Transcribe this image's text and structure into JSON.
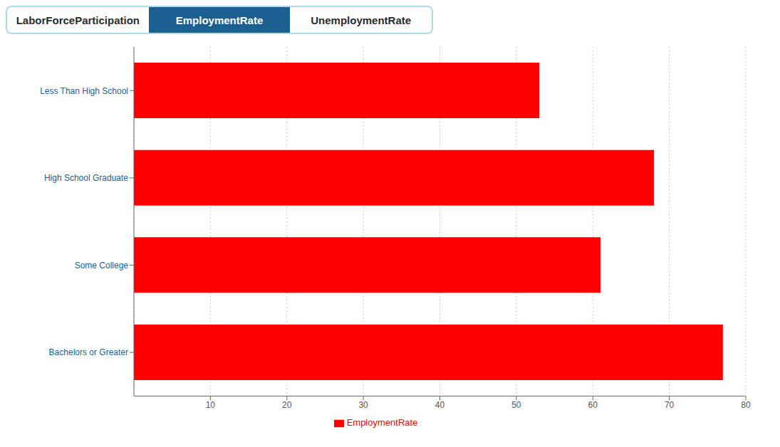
{
  "chart_data": {
    "type": "bar",
    "orientation": "horizontal",
    "annotations": [
      "LaborForceParticipation",
      "EmploymentRate",
      "UnemploymentRate"
    ],
    "categories": [
      "Less Than High School",
      "High School Graduate",
      "Some College",
      "Bachelors or Greater"
    ],
    "series": [
      {
        "name": "EmploymentRate",
        "color": "#FF0000",
        "values": [
          53.0,
          68.0,
          61.0,
          77.0
        ]
      }
    ],
    "xlim": [
      0,
      80
    ],
    "xticks": [
      10,
      20,
      30,
      40,
      50,
      60,
      70,
      80
    ],
    "grid": true,
    "legend": "bottom"
  }
}
